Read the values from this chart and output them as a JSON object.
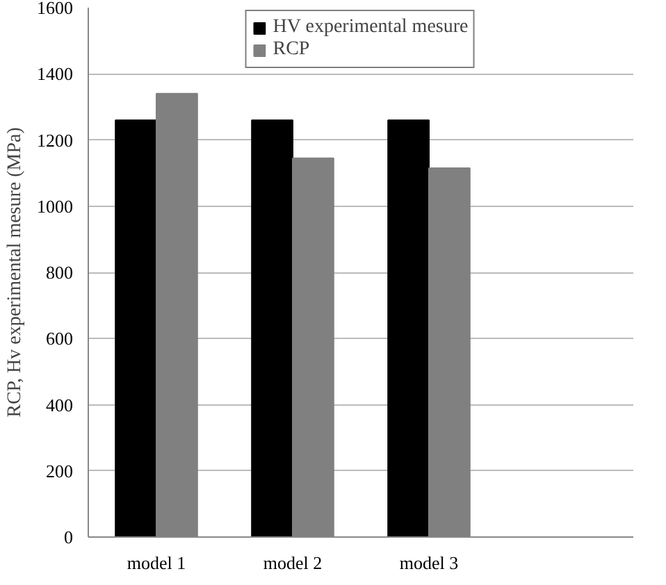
{
  "chart_data": {
    "type": "bar",
    "ylabel": "RCP, Hv experimental mesure (MPa)",
    "categories": [
      "model 1",
      "model 2",
      "model 3",
      null
    ],
    "series": [
      {
        "name": "HV experimental mesure",
        "color": "#000000",
        "values": [
          1260,
          1260,
          1260,
          null
        ]
      },
      {
        "name": "RCP",
        "color": "#808080",
        "values": [
          1340,
          1145,
          1115,
          null
        ]
      }
    ],
    "ylim": [
      0,
      1600
    ],
    "yticks": [
      0,
      200,
      400,
      600,
      800,
      1000,
      1200,
      1400,
      1600
    ],
    "grid": "y",
    "legend": "top"
  }
}
